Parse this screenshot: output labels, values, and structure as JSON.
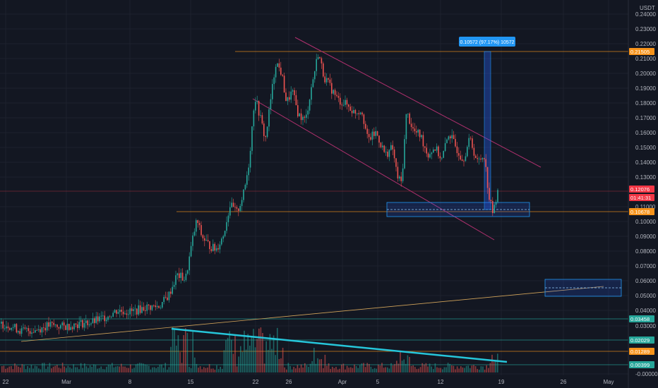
{
  "chart_data": {
    "type": "candlestick",
    "title": "",
    "currency_label": "USDT",
    "x_axis_dates": [
      "22",
      "Mar",
      "8",
      "15",
      "22",
      "26",
      "Apr",
      "5",
      "12",
      "19",
      "26",
      "May"
    ],
    "y_axis_ticks": [
      "0.24000",
      "0.23000",
      "0.22000",
      "0.21000",
      "0.20000",
      "0.19000",
      "0.18000",
      "0.17000",
      "0.16000",
      "0.15000",
      "0.14000",
      "0.13000",
      "0.11000",
      "0.10000",
      "0.09000",
      "0.08000",
      "0.07000",
      "0.06000",
      "0.05000",
      "0.04000",
      "0.03000",
      "-0.00000"
    ],
    "price_badges": [
      {
        "text": "0.21505",
        "color": "#f7931a"
      },
      {
        "text": "0.12076",
        "color": "#f23645"
      },
      {
        "text": "01:41:31",
        "color": "#f23645"
      },
      {
        "text": "0.10678",
        "color": "#f7931a"
      },
      {
        "text": "0.03458",
        "color": "#26a69a"
      },
      {
        "text": "0.02029",
        "color": "#26a69a"
      },
      {
        "text": "0.01289",
        "color": "#f7931a"
      },
      {
        "text": "0.00399",
        "color": "#26a69a"
      }
    ],
    "measure_label": "0.10572 (97.17%) 10572",
    "price_path": [
      {
        "x": 0,
        "y": 0.031
      },
      {
        "x": 12,
        "y": 0.03
      },
      {
        "x": 30,
        "y": 0.026
      },
      {
        "x": 50,
        "y": 0.027
      },
      {
        "x": 70,
        "y": 0.03
      },
      {
        "x": 90,
        "y": 0.029
      },
      {
        "x": 110,
        "y": 0.031
      },
      {
        "x": 130,
        "y": 0.032
      },
      {
        "x": 150,
        "y": 0.036
      },
      {
        "x": 165,
        "y": 0.04
      },
      {
        "x": 185,
        "y": 0.039
      },
      {
        "x": 205,
        "y": 0.042
      },
      {
        "x": 225,
        "y": 0.043
      },
      {
        "x": 238,
        "y": 0.05
      },
      {
        "x": 250,
        "y": 0.064
      },
      {
        "x": 262,
        "y": 0.061
      },
      {
        "x": 272,
        "y": 0.088
      },
      {
        "x": 278,
        "y": 0.101
      },
      {
        "x": 285,
        "y": 0.09
      },
      {
        "x": 295,
        "y": 0.084
      },
      {
        "x": 305,
        "y": 0.081
      },
      {
        "x": 315,
        "y": 0.09
      },
      {
        "x": 325,
        "y": 0.111
      },
      {
        "x": 335,
        "y": 0.106
      },
      {
        "x": 345,
        "y": 0.12
      },
      {
        "x": 352,
        "y": 0.14
      },
      {
        "x": 360,
        "y": 0.185
      },
      {
        "x": 368,
        "y": 0.17
      },
      {
        "x": 375,
        "y": 0.155
      },
      {
        "x": 382,
        "y": 0.18
      },
      {
        "x": 390,
        "y": 0.208
      },
      {
        "x": 398,
        "y": 0.2
      },
      {
        "x": 405,
        "y": 0.18
      },
      {
        "x": 413,
        "y": 0.188
      },
      {
        "x": 422,
        "y": 0.172
      },
      {
        "x": 432,
        "y": 0.168
      },
      {
        "x": 440,
        "y": 0.19
      },
      {
        "x": 450,
        "y": 0.214
      },
      {
        "x": 458,
        "y": 0.198
      },
      {
        "x": 468,
        "y": 0.19
      },
      {
        "x": 478,
        "y": 0.182
      },
      {
        "x": 490,
        "y": 0.179
      },
      {
        "x": 500,
        "y": 0.174
      },
      {
        "x": 512,
        "y": 0.175
      },
      {
        "x": 520,
        "y": 0.155
      },
      {
        "x": 532,
        "y": 0.16
      },
      {
        "x": 545,
        "y": 0.145
      },
      {
        "x": 555,
        "y": 0.15
      },
      {
        "x": 562,
        "y": 0.13
      },
      {
        "x": 568,
        "y": 0.126
      },
      {
        "x": 575,
        "y": 0.174
      },
      {
        "x": 585,
        "y": 0.161
      },
      {
        "x": 595,
        "y": 0.158
      },
      {
        "x": 605,
        "y": 0.145
      },
      {
        "x": 615,
        "y": 0.15
      },
      {
        "x": 625,
        "y": 0.142
      },
      {
        "x": 635,
        "y": 0.16
      },
      {
        "x": 645,
        "y": 0.15
      },
      {
        "x": 655,
        "y": 0.142
      },
      {
        "x": 665,
        "y": 0.156
      },
      {
        "x": 675,
        "y": 0.14
      },
      {
        "x": 685,
        "y": 0.145
      },
      {
        "x": 692,
        "y": 0.116
      },
      {
        "x": 698,
        "y": 0.105
      },
      {
        "x": 705,
        "y": 0.125
      }
    ],
    "horizontal_levels": [
      {
        "value": 0.21505,
        "color": "#f7931a"
      },
      {
        "value": 0.12076,
        "color": "#f23645"
      },
      {
        "value": 0.10678,
        "color": "#f7931a"
      },
      {
        "value": 0.03458,
        "color": "#26a69a"
      },
      {
        "value": 0.02029,
        "color": "#26a69a"
      },
      {
        "value": 0.01289,
        "color": "#f7931a"
      },
      {
        "value": 0.00399,
        "color": "#26a69a"
      }
    ],
    "volume_bars_note": "volume histogram along bottom",
    "colors": {
      "background": "#131722",
      "up": "#26a69a",
      "down": "#ef5350",
      "grid": "#1e222d",
      "channel": "#b0306e",
      "accent": "#2962ff"
    }
  }
}
